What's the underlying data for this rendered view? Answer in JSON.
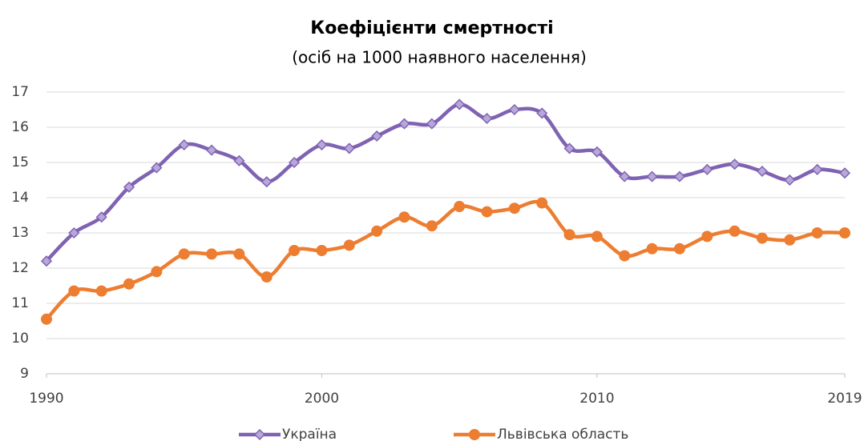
{
  "chart_data": {
    "type": "line",
    "title": "Коефіцієнти смертності",
    "subtitle": "(осіб на 1000 наявного населення)",
    "x": [
      1990,
      1991,
      1992,
      1993,
      1994,
      1995,
      1996,
      1997,
      1998,
      1999,
      2000,
      2001,
      2002,
      2003,
      2004,
      2005,
      2006,
      2007,
      2008,
      2009,
      2010,
      2011,
      2012,
      2013,
      2014,
      2015,
      2016,
      2017,
      2018,
      2019
    ],
    "series": [
      {
        "name": "Україна",
        "color": "#7f63b2",
        "marker": "diamond",
        "marker_fill": "#b8a7d9",
        "values": [
          12.2,
          13.0,
          13.45,
          14.3,
          14.85,
          15.5,
          15.35,
          15.05,
          14.45,
          15.0,
          15.5,
          15.4,
          15.75,
          16.1,
          16.1,
          16.65,
          16.25,
          16.5,
          16.4,
          15.4,
          15.3,
          14.6,
          14.6,
          14.6,
          14.8,
          14.95,
          14.75,
          14.5,
          14.8,
          14.7
        ]
      },
      {
        "name": "Львівська область",
        "color": "#ed7d31",
        "marker": "circle",
        "marker_fill": "#ed7d31",
        "values": [
          10.55,
          11.35,
          11.35,
          11.55,
          11.9,
          12.4,
          12.4,
          12.4,
          11.75,
          12.5,
          12.5,
          12.65,
          13.05,
          13.45,
          13.2,
          13.75,
          13.6,
          13.7,
          13.85,
          12.95,
          12.9,
          12.35,
          12.55,
          12.55,
          12.9,
          13.05,
          12.85,
          12.8,
          13.0,
          13.0
        ]
      }
    ],
    "xlim": [
      1990,
      2019
    ],
    "xticks": [
      1990,
      2000,
      2010,
      2019
    ],
    "ylim": [
      9,
      17
    ],
    "yticks": [
      9,
      10,
      11,
      12,
      13,
      14,
      15,
      16,
      17
    ],
    "grid": true,
    "legend": "bottom"
  }
}
